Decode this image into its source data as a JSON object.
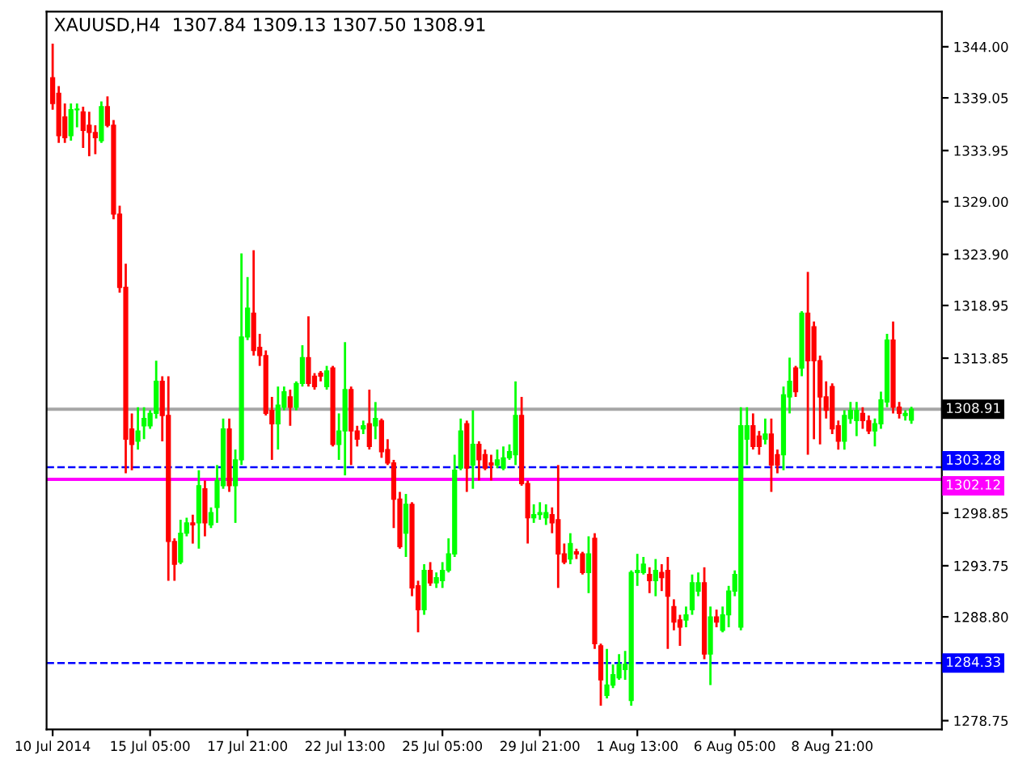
{
  "chart_data": {
    "type": "candlestick",
    "title": "XAUUSD,H4  1307.84 1309.13 1307.50 1308.91",
    "categories": [
      "10 Jul 2014",
      null,
      null,
      null,
      null,
      null,
      null,
      null,
      null,
      null,
      null,
      null,
      null,
      null,
      null,
      null,
      "15 Jul 05:00",
      null,
      null,
      null,
      null,
      null,
      null,
      null,
      null,
      null,
      null,
      null,
      null,
      null,
      null,
      null,
      "17 Jul 21:00",
      null,
      null,
      null,
      null,
      null,
      null,
      null,
      null,
      null,
      null,
      null,
      null,
      null,
      null,
      null,
      "22 Jul 13:00",
      null,
      null,
      null,
      null,
      null,
      null,
      null,
      null,
      null,
      null,
      null,
      null,
      null,
      null,
      null,
      "25 Jul 05:00",
      null,
      null,
      null,
      null,
      null,
      null,
      null,
      null,
      null,
      null,
      null,
      null,
      null,
      null,
      null,
      "29 Jul 21:00",
      null,
      null,
      null,
      null,
      null,
      null,
      null,
      null,
      null,
      null,
      null,
      null,
      null,
      null,
      null,
      "1 Aug 13:00",
      null,
      null,
      null,
      null,
      null,
      null,
      null,
      null,
      null,
      null,
      null,
      null,
      null,
      null,
      null,
      "6 Aug 05:00",
      null,
      null,
      null,
      null,
      null,
      null,
      null,
      null,
      null,
      null,
      null,
      null,
      null,
      null,
      null,
      "8 Aug 21:00",
      null,
      null,
      null,
      null,
      null,
      null,
      null,
      null,
      null,
      null,
      null,
      null,
      null
    ],
    "ohlc": [
      [
        1341.0,
        1344.3,
        1337.9,
        1338.5
      ],
      [
        1339.5,
        1340.2,
        1334.7,
        1335.4
      ],
      [
        1337.2,
        1338.5,
        1334.7,
        1335.2
      ],
      [
        1335.4,
        1338.5,
        1334.9,
        1337.9
      ],
      [
        1337.9,
        1338.5,
        1336.2,
        1337.9
      ],
      [
        1337.7,
        1338.2,
        1334.2,
        1335.9
      ],
      [
        1336.4,
        1337.7,
        1333.4,
        1335.7
      ],
      [
        1335.7,
        1336.4,
        1333.6,
        1335.2
      ],
      [
        1334.9,
        1338.7,
        1334.7,
        1338.2
      ],
      [
        1338.2,
        1339.2,
        1336.2,
        1336.4
      ],
      [
        1336.4,
        1336.9,
        1327.3,
        1327.8
      ],
      [
        1327.8,
        1328.6,
        1320.2,
        1320.7
      ],
      [
        1320.7,
        1323.0,
        1302.7,
        1306.0
      ],
      [
        1307.0,
        1308.5,
        1303.0,
        1305.5
      ],
      [
        1305.8,
        1309.1,
        1305.0,
        1306.8
      ],
      [
        1307.3,
        1309.1,
        1306.0,
        1308.0
      ],
      [
        1307.3,
        1308.8,
        1307.0,
        1308.5
      ],
      [
        1308.5,
        1313.6,
        1308.0,
        1311.6
      ],
      [
        1311.6,
        1312.1,
        1305.8,
        1308.3
      ],
      [
        1308.3,
        1312.1,
        1292.3,
        1296.1
      ],
      [
        1296.1,
        1296.4,
        1292.3,
        1293.9
      ],
      [
        1294.1,
        1298.2,
        1293.9,
        1296.9
      ],
      [
        1296.9,
        1298.4,
        1296.6,
        1297.9
      ],
      [
        1297.9,
        1298.7,
        1295.9,
        1297.7
      ],
      [
        1297.9,
        1303.0,
        1295.4,
        1301.5
      ],
      [
        1301.2,
        1302.0,
        1296.6,
        1297.9
      ],
      [
        1297.7,
        1299.4,
        1297.4,
        1298.9
      ],
      [
        1299.4,
        1303.5,
        1297.9,
        1302.0
      ],
      [
        1301.5,
        1308.0,
        1301.2,
        1307.0
      ],
      [
        1307.0,
        1308.0,
        1300.9,
        1301.5
      ],
      [
        1301.5,
        1305.0,
        1297.9,
        1304.0
      ],
      [
        1304.0,
        1324.0,
        1303.5,
        1315.9
      ],
      [
        1315.9,
        1321.7,
        1315.6,
        1318.7
      ],
      [
        1318.2,
        1324.3,
        1314.1,
        1314.6
      ],
      [
        1314.9,
        1316.2,
        1313.1,
        1314.1
      ],
      [
        1314.1,
        1314.6,
        1308.3,
        1308.5
      ],
      [
        1308.8,
        1310.1,
        1304.0,
        1307.5
      ],
      [
        1307.5,
        1311.1,
        1305.0,
        1309.3
      ],
      [
        1309.1,
        1311.1,
        1308.8,
        1310.6
      ],
      [
        1310.1,
        1310.8,
        1307.3,
        1309.1
      ],
      [
        1309.1,
        1311.6,
        1308.8,
        1311.4
      ],
      [
        1311.4,
        1315.1,
        1311.1,
        1313.9
      ],
      [
        1313.9,
        1317.9,
        1311.1,
        1311.4
      ],
      [
        1312.1,
        1312.4,
        1310.8,
        1311.1
      ],
      [
        1312.4,
        1312.6,
        1311.6,
        1312.1
      ],
      [
        1311.1,
        1313.1,
        1310.8,
        1312.6
      ],
      [
        1312.9,
        1313.1,
        1305.3,
        1305.5
      ],
      [
        1305.5,
        1308.5,
        1304.0,
        1306.8
      ],
      [
        1306.8,
        1315.4,
        1302.5,
        1310.8
      ],
      [
        1310.8,
        1311.1,
        1303.5,
        1306.8
      ],
      [
        1306.8,
        1307.3,
        1305.3,
        1306.0
      ],
      [
        1307.0,
        1307.8,
        1306.5,
        1307.3
      ],
      [
        1307.5,
        1310.8,
        1305.0,
        1305.3
      ],
      [
        1307.3,
        1309.6,
        1306.0,
        1308.0
      ],
      [
        1307.8,
        1308.0,
        1304.2,
        1304.8
      ],
      [
        1305.0,
        1306.0,
        1303.5,
        1303.7
      ],
      [
        1303.7,
        1304.0,
        1297.4,
        1300.2
      ],
      [
        1300.2,
        1300.9,
        1295.4,
        1295.6
      ],
      [
        1296.9,
        1300.7,
        1294.6,
        1299.7
      ],
      [
        1299.7,
        1299.9,
        1290.8,
        1291.6
      ],
      [
        1291.8,
        1292.3,
        1287.3,
        1289.5
      ],
      [
        1289.5,
        1293.9,
        1289.0,
        1293.3
      ],
      [
        1293.3,
        1294.1,
        1291.8,
        1292.1
      ],
      [
        1292.1,
        1293.1,
        1291.6,
        1292.6
      ],
      [
        1292.3,
        1294.1,
        1291.6,
        1293.3
      ],
      [
        1293.3,
        1296.4,
        1293.1,
        1294.9
      ],
      [
        1294.9,
        1304.5,
        1294.6,
        1303.0
      ],
      [
        1303.2,
        1308.0,
        1303.0,
        1306.8
      ],
      [
        1307.5,
        1307.8,
        1300.9,
        1303.2
      ],
      [
        1303.5,
        1308.8,
        1301.2,
        1305.5
      ],
      [
        1305.5,
        1305.8,
        1302.0,
        1304.0
      ],
      [
        1304.5,
        1305.0,
        1303.0,
        1303.2
      ],
      [
        1303.7,
        1304.5,
        1302.0,
        1303.5
      ],
      [
        1303.5,
        1305.0,
        1303.2,
        1304.0
      ],
      [
        1303.2,
        1305.3,
        1303.0,
        1304.2
      ],
      [
        1304.2,
        1305.5,
        1304.0,
        1304.8
      ],
      [
        1304.5,
        1311.6,
        1303.5,
        1308.3
      ],
      [
        1308.3,
        1310.1,
        1301.5,
        1301.7
      ],
      [
        1301.7,
        1302.0,
        1295.9,
        1298.4
      ],
      [
        1298.4,
        1299.7,
        1297.9,
        1298.7
      ],
      [
        1298.7,
        1299.9,
        1298.2,
        1298.9
      ],
      [
        1298.4,
        1299.7,
        1297.7,
        1298.9
      ],
      [
        1298.7,
        1299.4,
        1296.9,
        1297.9
      ],
      [
        1298.2,
        1303.5,
        1291.6,
        1294.9
      ],
      [
        1294.9,
        1295.9,
        1293.9,
        1294.1
      ],
      [
        1294.4,
        1296.9,
        1293.9,
        1295.9
      ],
      [
        1295.1,
        1295.4,
        1294.4,
        1294.9
      ],
      [
        1294.9,
        1295.1,
        1292.9,
        1293.1
      ],
      [
        1293.1,
        1296.6,
        1291.1,
        1294.9
      ],
      [
        1296.4,
        1296.9,
        1285.7,
        1286.2
      ],
      [
        1286.0,
        1286.2,
        1280.2,
        1282.7
      ],
      [
        1281.2,
        1285.7,
        1280.9,
        1282.2
      ],
      [
        1282.2,
        1284.2,
        1281.9,
        1283.2
      ],
      [
        1282.9,
        1285.2,
        1282.7,
        1284.2
      ],
      [
        1283.7,
        1285.5,
        1282.7,
        1284.2
      ],
      [
        1280.7,
        1293.3,
        1280.2,
        1293.1
      ],
      [
        1293.1,
        1294.9,
        1291.8,
        1293.3
      ],
      [
        1293.1,
        1294.6,
        1292.9,
        1293.9
      ],
      [
        1292.9,
        1293.6,
        1291.1,
        1292.3
      ],
      [
        1292.3,
        1294.4,
        1290.8,
        1293.3
      ],
      [
        1293.1,
        1293.9,
        1291.3,
        1292.6
      ],
      [
        1293.3,
        1294.6,
        1285.7,
        1290.8
      ],
      [
        1289.8,
        1290.5,
        1287.5,
        1288.3
      ],
      [
        1288.5,
        1289.0,
        1286.0,
        1287.8
      ],
      [
        1288.5,
        1289.8,
        1287.8,
        1289.0
      ],
      [
        1289.5,
        1292.9,
        1289.0,
        1292.1
      ],
      [
        1291.3,
        1293.1,
        1290.8,
        1292.1
      ],
      [
        1292.1,
        1293.6,
        1284.7,
        1285.2
      ],
      [
        1285.2,
        1289.8,
        1282.2,
        1288.8
      ],
      [
        1288.8,
        1289.5,
        1287.8,
        1288.3
      ],
      [
        1287.5,
        1289.8,
        1287.3,
        1289.0
      ],
      [
        1289.0,
        1291.8,
        1287.8,
        1291.3
      ],
      [
        1291.3,
        1293.3,
        1290.8,
        1292.9
      ],
      [
        1287.8,
        1309.1,
        1287.5,
        1307.3
      ],
      [
        1306.0,
        1309.1,
        1303.5,
        1307.3
      ],
      [
        1307.3,
        1308.5,
        1305.0,
        1305.3
      ],
      [
        1306.3,
        1306.8,
        1304.5,
        1305.3
      ],
      [
        1306.0,
        1308.0,
        1305.5,
        1306.5
      ],
      [
        1306.5,
        1308.0,
        1300.9,
        1303.5
      ],
      [
        1304.5,
        1305.0,
        1302.7,
        1303.5
      ],
      [
        1304.5,
        1311.1,
        1303.0,
        1310.3
      ],
      [
        1310.1,
        1313.9,
        1308.5,
        1311.6
      ],
      [
        1312.9,
        1313.1,
        1310.1,
        1310.6
      ],
      [
        1312.9,
        1318.4,
        1312.1,
        1318.2
      ],
      [
        1318.2,
        1322.2,
        1304.5,
        1313.6
      ],
      [
        1316.9,
        1317.4,
        1306.0,
        1313.6
      ],
      [
        1313.6,
        1314.1,
        1305.5,
        1310.1
      ],
      [
        1310.1,
        1311.6,
        1308.0,
        1308.8
      ],
      [
        1311.1,
        1311.4,
        1306.5,
        1307.0
      ],
      [
        1307.3,
        1307.8,
        1305.0,
        1305.8
      ],
      [
        1305.8,
        1308.8,
        1305.0,
        1308.3
      ],
      [
        1308.0,
        1309.6,
        1307.5,
        1308.8
      ],
      [
        1307.8,
        1309.6,
        1306.3,
        1308.8
      ],
      [
        1308.5,
        1309.1,
        1307.0,
        1307.8
      ],
      [
        1307.8,
        1308.3,
        1306.5,
        1306.8
      ],
      [
        1306.8,
        1308.0,
        1305.3,
        1307.5
      ],
      [
        1307.5,
        1310.6,
        1307.0,
        1309.8
      ],
      [
        1309.6,
        1316.2,
        1309.1,
        1315.6
      ],
      [
        1315.6,
        1317.4,
        1308.5,
        1309.1
      ],
      [
        1309.1,
        1309.6,
        1308.0,
        1308.5
      ],
      [
        1308.3,
        1308.8,
        1307.8,
        1308.5
      ],
      [
        1307.84,
        1309.13,
        1307.5,
        1308.91
      ]
    ],
    "colors": [
      "#ff0000",
      "#ff0000",
      "#ff0000",
      "#00ff00",
      "#00ff00",
      "#ff0000",
      "#ff0000",
      "#ff0000",
      "#00ff00",
      "#ff0000",
      "#ff0000",
      "#ff0000",
      "#ff0000",
      "#ff0000",
      "#00ff00",
      "#00ff00",
      "#00ff00",
      "#00ff00",
      "#ff0000",
      "#ff0000",
      "#ff0000",
      "#00ff00",
      "#00ff00",
      "#ff0000",
      "#00ff00",
      "#ff0000",
      "#00ff00",
      "#00ff00",
      "#00ff00",
      "#ff0000",
      "#00ff00",
      "#00ff00",
      "#00ff00",
      "#ff0000",
      "#ff0000",
      "#ff0000",
      "#ff0000",
      "#00ff00",
      "#00ff00",
      "#ff0000",
      "#00ff00",
      "#00ff00",
      "#ff0000",
      "#ff0000",
      "#ff0000",
      "#00ff00",
      "#ff0000",
      "#00ff00",
      "#00ff00",
      "#ff0000",
      "#ff0000",
      "#00ff00",
      "#ff0000",
      "#00ff00",
      "#ff0000",
      "#ff0000",
      "#ff0000",
      "#ff0000",
      "#00ff00",
      "#ff0000",
      "#ff0000",
      "#00ff00",
      "#ff0000",
      "#00ff00",
      "#00ff00",
      "#00ff00",
      "#00ff00",
      "#00ff00",
      "#ff0000",
      "#00ff00",
      "#ff0000",
      "#ff0000",
      "#ff0000",
      "#00ff00",
      "#00ff00",
      "#00ff00",
      "#00ff00",
      "#ff0000",
      "#ff0000",
      "#00ff00",
      "#00ff00",
      "#00ff00",
      "#ff0000",
      "#ff0000",
      "#ff0000",
      "#00ff00",
      "#ff0000",
      "#ff0000",
      "#00ff00",
      "#ff0000",
      "#ff0000",
      "#00ff00",
      "#00ff00",
      "#00ff00",
      "#00ff00",
      "#00ff00",
      "#00ff00",
      "#00ff00",
      "#ff0000",
      "#00ff00",
      "#ff0000",
      "#ff0000",
      "#ff0000",
      "#ff0000",
      "#00ff00",
      "#00ff00",
      "#00ff00",
      "#ff0000",
      "#00ff00",
      "#ff0000",
      "#00ff00",
      "#00ff00",
      "#00ff00",
      "#00ff00",
      "#00ff00",
      "#ff0000",
      "#ff0000",
      "#00ff00",
      "#ff0000",
      "#ff0000",
      "#00ff00",
      "#00ff00",
      "#ff0000",
      "#00ff00",
      "#ff0000",
      "#ff0000",
      "#ff0000",
      "#ff0000",
      "#ff0000",
      "#ff0000",
      "#00ff00",
      "#00ff00",
      "#00ff00",
      "#ff0000",
      "#ff0000",
      "#00ff00",
      "#00ff00",
      "#00ff00",
      "#ff0000",
      "#ff0000",
      "#00ff00",
      "#00ff00"
    ],
    "ylim": [
      1277.9,
      1347.4
    ],
    "yticks": [
      {
        "value": 1344.0,
        "label": "1344.00"
      },
      {
        "value": 1339.05,
        "label": "1339.05"
      },
      {
        "value": 1333.95,
        "label": "1333.95"
      },
      {
        "value": 1329.0,
        "label": "1329.00"
      },
      {
        "value": 1323.9,
        "label": "1323.90"
      },
      {
        "value": 1318.95,
        "label": "1318.95"
      },
      {
        "value": 1313.85,
        "label": "1313.85"
      },
      {
        "value": 1298.85,
        "label": "1298.85"
      },
      {
        "value": 1293.75,
        "label": "1293.75"
      },
      {
        "value": 1288.8,
        "label": "1288.80"
      },
      {
        "value": 1278.75,
        "label": "1278.75"
      }
    ],
    "ref_lines": [
      {
        "axis": "y",
        "value": 1308.91,
        "label": "1308.91",
        "color": "#000000",
        "line_style": "solid"
      },
      {
        "axis": "y",
        "value": 1303.28,
        "label": "1303.28",
        "color": "#0000ff",
        "line_style": "dashed"
      },
      {
        "axis": "y",
        "value": 1302.12,
        "label": "1302.12",
        "color": "#ff00ff",
        "line_style": "solid"
      },
      {
        "axis": "y",
        "value": 1284.33,
        "label": "1284.33",
        "color": "#0000ff",
        "line_style": "dashed"
      }
    ],
    "grid": false
  }
}
